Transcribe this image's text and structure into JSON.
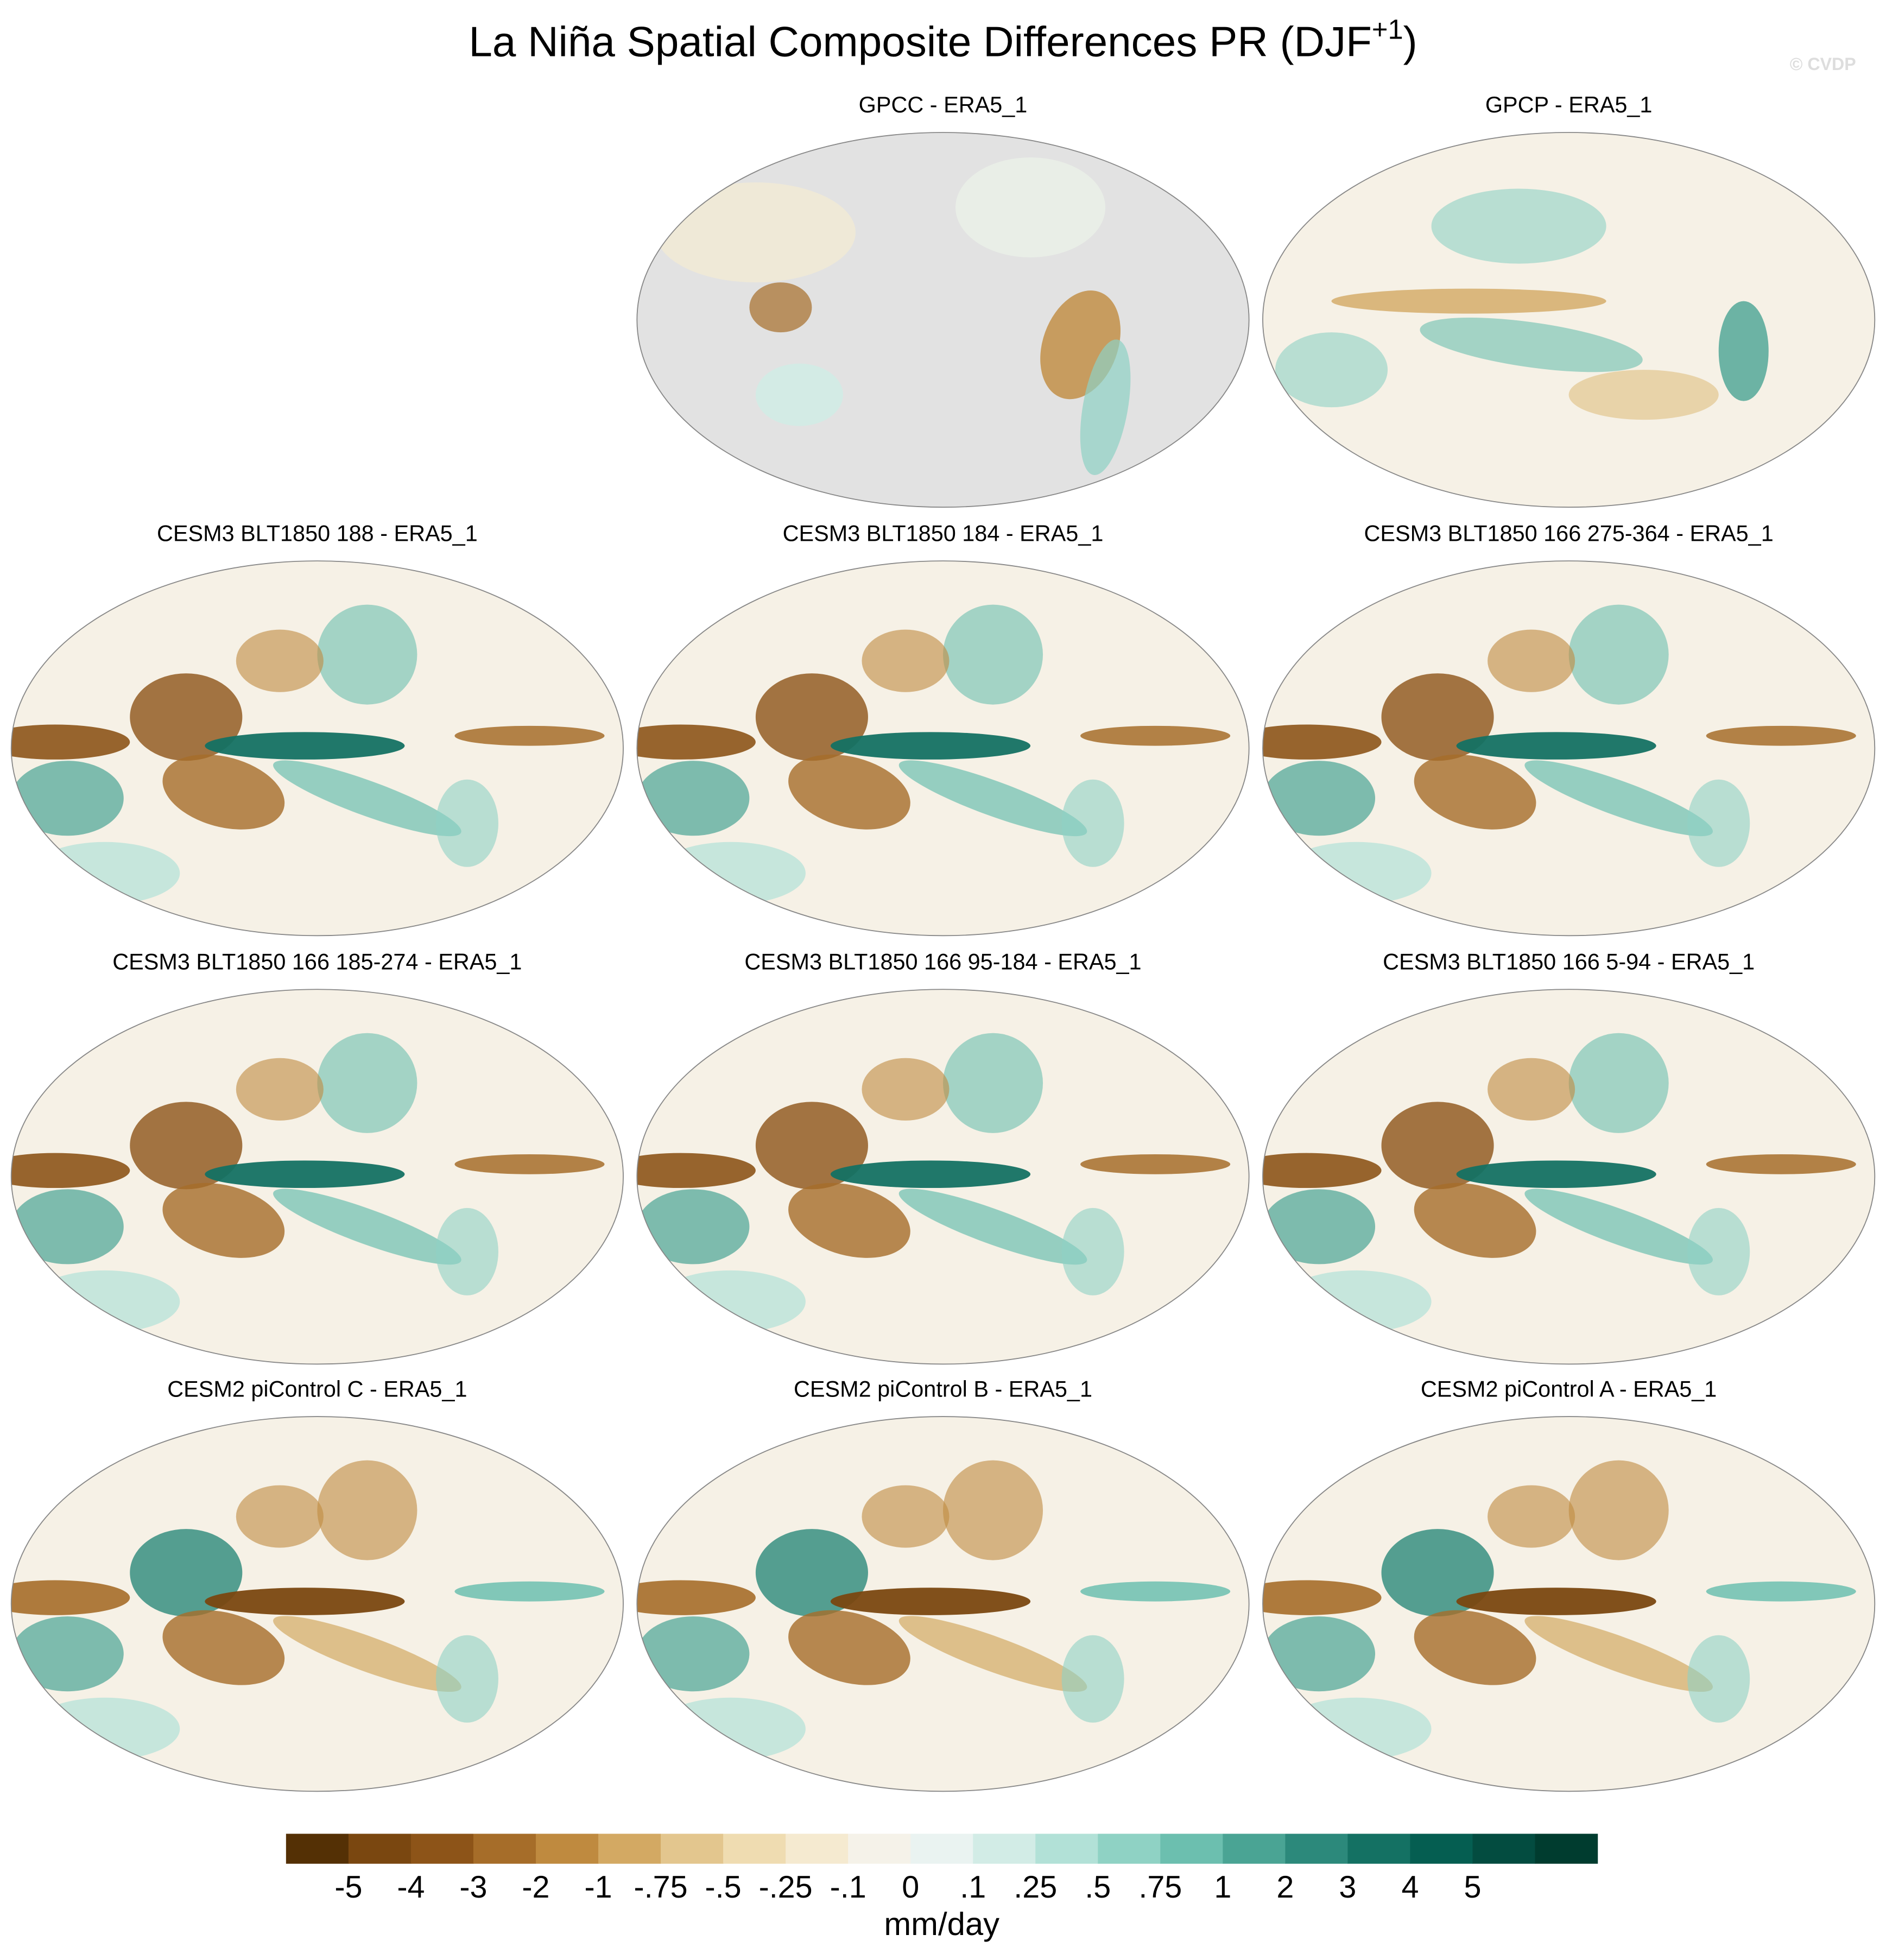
{
  "chart_data": {
    "type": "map-panels",
    "title": "La Niña Spatial Composite Differences PR (DJF",
    "title_superscript": "+1",
    "title_close": ")",
    "watermark": "© CVDP",
    "panels": [
      {
        "title": "GPCC - ERA5_1",
        "style": "land-only"
      },
      {
        "title": "GPCP - ERA5_1",
        "style": "obs"
      },
      {
        "title": "CESM3 BLT1850 188 - ERA5_1",
        "style": "model"
      },
      {
        "title": "CESM3 BLT1850 184 - ERA5_1",
        "style": "model"
      },
      {
        "title": "CESM3 BLT1850 166 275-364 - ERA5_1",
        "style": "model"
      },
      {
        "title": "CESM3 BLT1850 166 185-274 - ERA5_1",
        "style": "model"
      },
      {
        "title": "CESM3 BLT1850 166 95-184 - ERA5_1",
        "style": "model"
      },
      {
        "title": "CESM3 BLT1850 166 5-94 - ERA5_1",
        "style": "model"
      },
      {
        "title": "CESM2 piControl C - ERA5_1",
        "style": "cesm2"
      },
      {
        "title": "CESM2 piControl B - ERA5_1",
        "style": "cesm2"
      },
      {
        "title": "CESM2 piControl A - ERA5_1",
        "style": "cesm2"
      }
    ],
    "colorbar": {
      "label": "mm/day",
      "colors": [
        "#543005",
        "#7a4710",
        "#8d5418",
        "#a66d29",
        "#bf8a3f",
        "#d3a963",
        "#e3c68e",
        "#efdcb1",
        "#f5ead0",
        "#f5f2e9",
        "#eaf3f1",
        "#d2ece6",
        "#b2e1d7",
        "#8fd2c4",
        "#6cbfaf",
        "#4aa494",
        "#2c897b",
        "#147163",
        "#055e51",
        "#034c40",
        "#003c2f"
      ],
      "ticks": [
        -5,
        -4,
        -3,
        -2,
        -1,
        {
          "value": -0.75,
          "label": "-.75"
        },
        {
          "value": -0.5,
          "label": "-.5"
        },
        {
          "value": -0.25,
          "label": "-.25"
        },
        {
          "value": -0.1,
          "label": "-.1"
        },
        0,
        {
          "value": 0.1,
          "label": ".1"
        },
        {
          "value": 0.25,
          "label": ".25"
        },
        {
          "value": 0.5,
          "label": ".5"
        },
        {
          "value": 0.75,
          "label": ".75"
        },
        1,
        2,
        3,
        4,
        5
      ]
    }
  }
}
